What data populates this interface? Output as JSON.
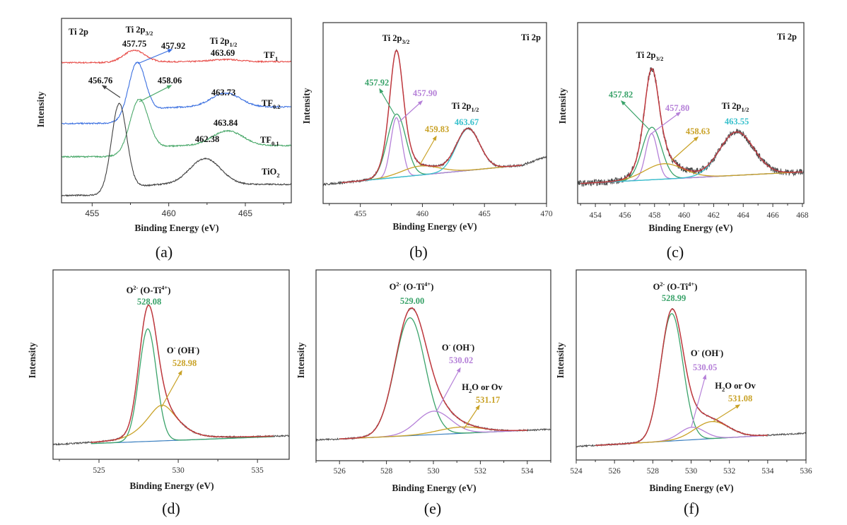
{
  "colors": {
    "raw_data": "#4a4a4a",
    "envelope": "#c0393f",
    "green": "#3aa36a",
    "purple": "#b580d8",
    "yellow": "#c9a227",
    "cyan": "#36c0cc",
    "baseline": "#3a7fc0",
    "TF1": "#e8504c",
    "TF0.2": "#3a6fe0",
    "TF0.1": "#4aa86a",
    "TiO2": "#404040"
  },
  "chart_data": [
    {
      "id": "a",
      "type": "line",
      "panel_label": "(a)",
      "xlabel": "Binding Energy (eV)",
      "ylabel": "Intensity",
      "xlim": [
        453,
        468
      ],
      "ylim": [
        0,
        1
      ],
      "x_reversed": false,
      "xticks": [
        "455",
        "460",
        "465"
      ],
      "xtick_values": [
        455,
        460,
        465
      ],
      "minor_step": 2.5,
      "series": [
        {
          "name": "TF1",
          "color_key": "TF1",
          "background": {
            "left": 0.76,
            "right": 0.765,
            "step_at": 458.3
          },
          "peaks": [
            {
              "center": 457.75,
              "amp": 0.065,
              "sigma": 0.7
            },
            {
              "center": 463.69,
              "amp": 0.012,
              "sigma": 1.0
            }
          ]
        },
        {
          "name": "TF0.2",
          "color_key": "TF0.2",
          "background": {
            "left": 0.43,
            "right": 0.52,
            "step_at": 458.3
          },
          "peaks": [
            {
              "center": 457.92,
              "amp": 0.3,
              "sigma": 0.55
            },
            {
              "center": 463.73,
              "amp": 0.075,
              "sigma": 0.95
            }
          ]
        },
        {
          "name": "TF0.1",
          "color_key": "TF0.1",
          "background": {
            "left": 0.25,
            "right": 0.31,
            "step_at": 458.4
          },
          "peaks": [
            {
              "center": 458.06,
              "amp": 0.29,
              "sigma": 0.6
            },
            {
              "center": 463.84,
              "amp": 0.08,
              "sigma": 1.0
            }
          ]
        },
        {
          "name": "TiO2",
          "color_key": "TiO2",
          "background": {
            "left": 0.04,
            "right": 0.1,
            "step_at": 457.3
          },
          "peaks": [
            {
              "center": 456.76,
              "amp": 0.48,
              "sigma": 0.5
            },
            {
              "center": 462.38,
              "amp": 0.14,
              "sigma": 1.0
            }
          ]
        }
      ],
      "annotations": [
        {
          "segs": [
            {
              "t": "Ti 2p"
            }
          ]
        },
        {
          "segs": [
            {
              "t": "Ti 2p"
            },
            {
              "t": "3/2",
              "s": "sub"
            }
          ]
        },
        {
          "segs": [
            {
              "t": "457.75"
            }
          ]
        },
        {
          "segs": [
            {
              "t": "457.92"
            }
          ]
        },
        {
          "segs": [
            {
              "t": "Ti 2p"
            },
            {
              "t": "1/2",
              "s": "sub"
            }
          ]
        },
        {
          "segs": [
            {
              "t": "463.69"
            }
          ]
        },
        {
          "segs": [
            {
              "t": "TF"
            },
            {
              "t": "1",
              "s": "sub"
            }
          ]
        },
        {
          "segs": [
            {
              "t": "456.76"
            }
          ]
        },
        {
          "segs": [
            {
              "t": "458.06"
            }
          ]
        },
        {
          "segs": [
            {
              "t": "463.73"
            }
          ]
        },
        {
          "segs": [
            {
              "t": "TF"
            },
            {
              "t": "0.2",
              "s": "sub"
            }
          ]
        },
        {
          "segs": [
            {
              "t": "463.84"
            }
          ]
        },
        {
          "segs": [
            {
              "t": "TF"
            },
            {
              "t": "0.1",
              "s": "sub"
            }
          ]
        },
        {
          "segs": [
            {
              "t": "462.38"
            }
          ]
        },
        {
          "segs": [
            {
              "t": "TiO"
            },
            {
              "t": "2",
              "s": "sub"
            }
          ]
        }
      ]
    },
    {
      "id": "b",
      "type": "line",
      "panel_label": "(b)",
      "xlabel": "Binding Energy (eV)",
      "ylabel": "Intensity",
      "xlim": [
        452,
        470
      ],
      "ylim": [
        0,
        1
      ],
      "xticks": [
        "455",
        "460",
        "465",
        "470"
      ],
      "xtick_values": [
        455,
        460,
        465,
        470
      ],
      "minor_step": 2.5,
      "fit_range": [
        453.5,
        468
      ],
      "background": {
        "x": [
          452,
          470
        ],
        "y": [
          0.105,
          0.225
        ]
      },
      "raw_tail": 0.035,
      "components": [
        {
          "label": "457.92",
          "color_key": "green",
          "center": 457.92,
          "amp": 0.35,
          "sigma": 0.75
        },
        {
          "label": "457.90",
          "color_key": "purple",
          "center": 457.9,
          "amp": 0.33,
          "sigma": 0.45
        },
        {
          "label": "459.83",
          "color_key": "yellow",
          "center": 459.83,
          "amp": 0.05,
          "sigma": 1.5
        },
        {
          "label": "463.67",
          "color_key": "cyan",
          "center": 463.67,
          "amp": 0.23,
          "sigma": 0.95
        }
      ],
      "annotations": [
        {
          "segs": [
            {
              "t": "Ti 2p"
            },
            {
              "t": "3/2",
              "s": "sub"
            }
          ]
        },
        {
          "segs": [
            {
              "t": "Ti 2p"
            }
          ]
        },
        {
          "segs": [
            {
              "t": "457.92"
            }
          ],
          "color_key": "green"
        },
        {
          "segs": [
            {
              "t": "457.90"
            }
          ],
          "color_key": "purple"
        },
        {
          "segs": [
            {
              "t": "Ti 2p"
            },
            {
              "t": "1/2",
              "s": "sub"
            }
          ]
        },
        {
          "segs": [
            {
              "t": "463.67"
            }
          ],
          "color_key": "cyan"
        },
        {
          "segs": [
            {
              "t": "459.83"
            }
          ],
          "color_key": "yellow"
        }
      ]
    },
    {
      "id": "c",
      "type": "line",
      "panel_label": "(c)",
      "xlabel": "Binding Energy (eV)",
      "ylabel": "Intensity",
      "xlim": [
        452.8,
        468.1
      ],
      "ylim": [
        0,
        1
      ],
      "xticks": [
        "454",
        "456",
        "458",
        "460",
        "462",
        "464",
        "466",
        "468"
      ],
      "xtick_values": [
        454,
        456,
        458,
        460,
        462,
        464,
        466,
        468
      ],
      "minor_step": 1,
      "fit_range": [
        453,
        468
      ],
      "background": {
        "x": [
          452.8,
          468.1
        ],
        "y": [
          0.11,
          0.175
        ]
      },
      "raw_tail": 0.0,
      "components": [
        {
          "label": "457.82",
          "color_key": "green",
          "center": 457.82,
          "amp": 0.29,
          "sigma": 0.65
        },
        {
          "label": "457.80",
          "color_key": "purple",
          "center": 457.8,
          "amp": 0.255,
          "sigma": 0.4
        },
        {
          "label": "458.63",
          "color_key": "yellow",
          "center": 458.63,
          "amp": 0.085,
          "sigma": 1.3
        },
        {
          "label": "463.55",
          "color_key": "cyan",
          "center": 463.55,
          "amp": 0.24,
          "sigma": 1.15
        }
      ],
      "annotations": [
        {
          "segs": [
            {
              "t": "Ti 2p"
            }
          ]
        },
        {
          "segs": [
            {
              "t": "Ti 2p"
            },
            {
              "t": "3/2",
              "s": "sub"
            }
          ]
        },
        {
          "segs": [
            {
              "t": "457.82"
            }
          ],
          "color_key": "green"
        },
        {
          "segs": [
            {
              "t": "457.80"
            }
          ],
          "color_key": "purple"
        },
        {
          "segs": [
            {
              "t": "Ti 2p"
            },
            {
              "t": "1/2",
              "s": "sub"
            }
          ]
        },
        {
          "segs": [
            {
              "t": "463.55"
            }
          ],
          "color_key": "cyan"
        },
        {
          "segs": [
            {
              "t": "458.63"
            }
          ],
          "color_key": "yellow"
        }
      ]
    },
    {
      "id": "d",
      "type": "line",
      "panel_label": "(d)",
      "xlabel": "Binding Energy (eV)",
      "ylabel": "Intensity",
      "xlim": [
        522.1,
        537
      ],
      "ylim": [
        0,
        1.06
      ],
      "xticks": [
        "525",
        "530",
        "535"
      ],
      "xtick_values": [
        525,
        530,
        535
      ],
      "minor_step": 2.5,
      "fit_range": [
        524.5,
        536
      ],
      "background": {
        "x": [
          522.1,
          537
        ],
        "y": [
          0.08,
          0.13
        ]
      },
      "raw_tail": 0.0,
      "components": [
        {
          "label": "528.08",
          "color_key": "green",
          "center": 528.08,
          "amp": 0.63,
          "sigma": 0.55
        },
        {
          "label": "528.98",
          "color_key": "yellow",
          "center": 528.98,
          "amp": 0.2,
          "sigma": 1.1,
          "lorentz_fraction": 0.6
        }
      ],
      "annotations": [
        {
          "segs": [
            {
              "t": "O"
            },
            {
              "t": "2-",
              "s": "sup"
            },
            {
              "t": " (O-Ti"
            },
            {
              "t": "4+",
              "s": "sup"
            },
            {
              "t": ")"
            }
          ]
        },
        {
          "segs": [
            {
              "t": "528.08"
            }
          ],
          "color_key": "green"
        },
        {
          "segs": [
            {
              "t": "O"
            },
            {
              "t": "-",
              "s": "sup"
            },
            {
              "t": " (OH"
            },
            {
              "t": "-",
              "s": "sup"
            },
            {
              "t": ")"
            }
          ]
        },
        {
          "segs": [
            {
              "t": "528.98"
            }
          ],
          "color_key": "yellow"
        }
      ]
    },
    {
      "id": "e",
      "type": "line",
      "panel_label": "(e)",
      "xlabel": "Binding Energy (eV)",
      "ylabel": "Intensity",
      "xlim": [
        525,
        535
      ],
      "ylim": [
        0,
        1.06
      ],
      "xticks": [
        "526",
        "528",
        "530",
        "532",
        "534"
      ],
      "xtick_values": [
        526,
        528,
        530,
        532,
        534
      ],
      "minor_step": 1,
      "fit_range": [
        526,
        534
      ],
      "background": {
        "x": [
          525,
          535
        ],
        "y": [
          0.115,
          0.175
        ]
      },
      "raw_tail": 0.0,
      "components": [
        {
          "label": "529.00",
          "color_key": "green",
          "center": 529.0,
          "amp": 0.655,
          "sigma": 0.64
        },
        {
          "label": "530.02",
          "color_key": "purple",
          "center": 530.02,
          "amp": 0.13,
          "sigma": 0.72
        },
        {
          "label": "531.17",
          "color_key": "yellow",
          "center": 531.17,
          "amp": 0.035,
          "sigma": 0.95
        }
      ],
      "annotations": [
        {
          "segs": [
            {
              "t": "O"
            },
            {
              "t": "2-",
              "s": "sup"
            },
            {
              "t": " (O-Ti"
            },
            {
              "t": "4+",
              "s": "sup"
            },
            {
              "t": ")"
            }
          ]
        },
        {
          "segs": [
            {
              "t": "529.00"
            }
          ],
          "color_key": "green"
        },
        {
          "segs": [
            {
              "t": "O"
            },
            {
              "t": "-",
              "s": "sup"
            },
            {
              "t": " (OH"
            },
            {
              "t": "-",
              "s": "sup"
            },
            {
              "t": ")"
            }
          ]
        },
        {
          "segs": [
            {
              "t": "530.02"
            }
          ],
          "color_key": "purple"
        },
        {
          "segs": [
            {
              "t": "H"
            },
            {
              "t": "2",
              "s": "sub"
            },
            {
              "t": "O or Ov"
            }
          ]
        },
        {
          "segs": [
            {
              "t": "531.17"
            }
          ],
          "color_key": "yellow"
        }
      ]
    },
    {
      "id": "f",
      "type": "line",
      "panel_label": "(f)",
      "xlabel": "Binding Energy (eV)",
      "ylabel": "Intensity",
      "xlim": [
        524,
        536
      ],
      "ylim": [
        0,
        1.06
      ],
      "xticks": [
        "524",
        "526",
        "528",
        "530",
        "532",
        "534",
        "536"
      ],
      "xtick_values": [
        524,
        526,
        528,
        530,
        532,
        534,
        536
      ],
      "minor_step": 1,
      "fit_range": [
        525,
        534
      ],
      "background": {
        "x": [
          524,
          536
        ],
        "y": [
          0.075,
          0.15
        ]
      },
      "raw_tail": 0.0,
      "components": [
        {
          "label": "528.99",
          "color_key": "green",
          "center": 528.99,
          "amp": 0.71,
          "sigma": 0.58
        },
        {
          "label": "530.05",
          "color_key": "purple",
          "center": 530.05,
          "amp": 0.07,
          "sigma": 0.65
        },
        {
          "label": "531.08",
          "color_key": "yellow",
          "center": 531.08,
          "amp": 0.095,
          "sigma": 0.9
        }
      ],
      "annotations": [
        {
          "segs": [
            {
              "t": "O"
            },
            {
              "t": "2-",
              "s": "sup"
            },
            {
              "t": " (O-Ti"
            },
            {
              "t": "4+",
              "s": "sup"
            },
            {
              "t": ")"
            }
          ]
        },
        {
          "segs": [
            {
              "t": "528.99"
            }
          ],
          "color_key": "green"
        },
        {
          "segs": [
            {
              "t": "O"
            },
            {
              "t": "-",
              "s": "sup"
            },
            {
              "t": " (OH"
            },
            {
              "t": "-",
              "s": "sup"
            },
            {
              "t": ")"
            }
          ]
        },
        {
          "segs": [
            {
              "t": "530.05"
            }
          ],
          "color_key": "purple"
        },
        {
          "segs": [
            {
              "t": "H"
            },
            {
              "t": "2",
              "s": "sub"
            },
            {
              "t": "O or Ov"
            }
          ]
        },
        {
          "segs": [
            {
              "t": "531.08"
            }
          ],
          "color_key": "yellow"
        }
      ]
    }
  ]
}
